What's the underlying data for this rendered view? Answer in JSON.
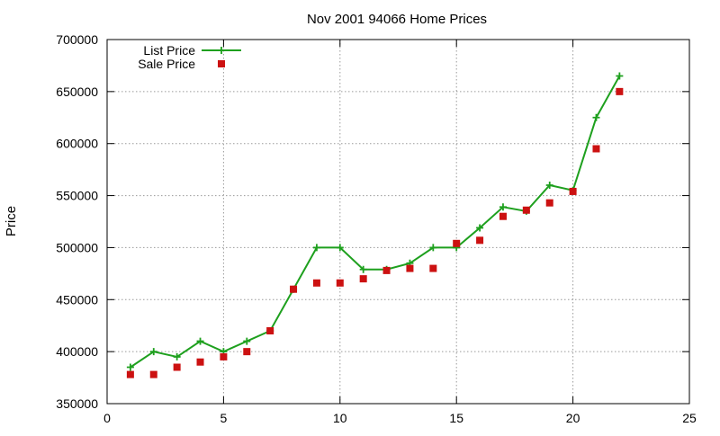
{
  "chart_data": {
    "type": "line",
    "title": "Nov 2001 94066 Home Prices",
    "xlabel": "",
    "ylabel": "Price",
    "xlim": [
      0,
      25
    ],
    "ylim": [
      350000,
      700000
    ],
    "x_ticks": [
      0,
      5,
      10,
      15,
      20,
      25
    ],
    "y_ticks": [
      350000,
      400000,
      450000,
      500000,
      550000,
      600000,
      650000,
      700000
    ],
    "grid": true,
    "legend_position": "top-left",
    "colors": {
      "list": "#1ea01e",
      "sale": "#cc1111"
    },
    "series": [
      {
        "name": "List Price",
        "style": "line-with-plus-markers",
        "x": [
          1,
          2,
          3,
          4,
          5,
          6,
          7,
          8,
          9,
          10,
          11,
          12,
          13,
          14,
          15,
          16,
          17,
          18,
          19,
          20,
          21,
          22
        ],
        "values": [
          385000,
          400000,
          395000,
          410000,
          400000,
          410000,
          420000,
          460000,
          500000,
          500000,
          479000,
          479000,
          485000,
          500000,
          500000,
          519000,
          539000,
          535000,
          560000,
          555000,
          625000,
          665000
        ]
      },
      {
        "name": "Sale Price",
        "style": "square-markers",
        "x": [
          1,
          2,
          3,
          4,
          5,
          6,
          7,
          8,
          9,
          10,
          11,
          12,
          13,
          14,
          15,
          16,
          17,
          18,
          19,
          20,
          21,
          22
        ],
        "values": [
          378000,
          378000,
          385000,
          390000,
          395000,
          400000,
          420000,
          460000,
          466000,
          466000,
          470000,
          478000,
          480000,
          480000,
          504000,
          507000,
          530000,
          536000,
          543000,
          554000,
          595000,
          650000
        ]
      }
    ]
  }
}
